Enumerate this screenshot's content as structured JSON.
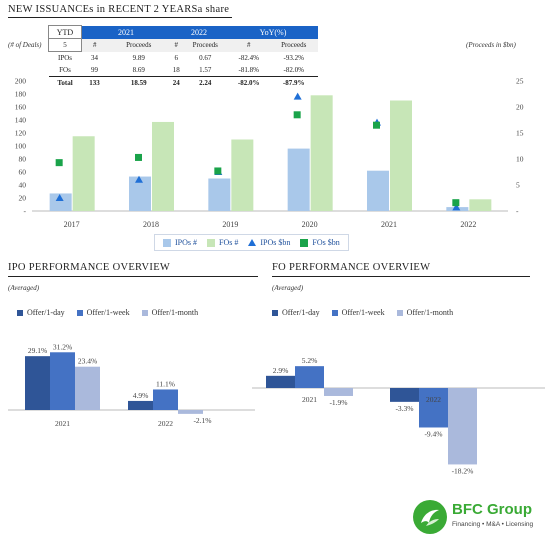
{
  "top": {
    "title": "NEW ISSUANCEs in RECENT 2 YEARSa share",
    "left_note": "(# of Deals)",
    "right_note": "(Proceeds in $bn)"
  },
  "ytd_table": {
    "header": [
      "YTD",
      "2021",
      "2022",
      "YoY(%)"
    ],
    "subheader": [
      "5",
      "#",
      "Proceeds",
      "#",
      "Proceeds",
      "#",
      "Proceeds"
    ],
    "rows": [
      [
        "IPOs",
        "34",
        "9.89",
        "6",
        "0.67",
        "-82.4%",
        "-93.2%"
      ],
      [
        "FOs",
        "99",
        "8.69",
        "18",
        "1.57",
        "-81.8%",
        "-82.0%"
      ]
    ],
    "total": [
      "Total",
      "133",
      "18.59",
      "24",
      "2.24",
      "-82.0%",
      "-87.9%"
    ]
  },
  "chart_data": [
    {
      "type": "bar",
      "categories": [
        "2017",
        "2018",
        "2019",
        "2020",
        "2021",
        "2022"
      ],
      "series": [
        {
          "name": "IPOs #",
          "kind": "bar",
          "axis": "left",
          "color": "#a9c8ea",
          "values": [
            27,
            53,
            50,
            96,
            62,
            6
          ]
        },
        {
          "name": "FOs #",
          "kind": "bar",
          "axis": "left",
          "color": "#c7e6b7",
          "values": [
            115,
            137,
            110,
            178,
            170,
            18
          ]
        },
        {
          "name": "IPOs $bn",
          "kind": "marker-triangle",
          "axis": "right",
          "color": "#1f6fd6",
          "values": [
            2.5,
            6.0,
            7.5,
            22.0,
            17.0,
            0.7
          ]
        },
        {
          "name": "FOs $bn",
          "kind": "marker-square",
          "axis": "right",
          "color": "#1aa34a",
          "values": [
            9.3,
            10.3,
            7.7,
            18.5,
            16.5,
            1.6
          ]
        }
      ],
      "ylim_left": [
        0,
        200
      ],
      "left_ticks": [
        "-",
        "20",
        "40",
        "60",
        "80",
        "100",
        "120",
        "140",
        "160",
        "180",
        "200"
      ],
      "ylim_right": [
        0,
        25
      ],
      "right_ticks": [
        "-",
        "5",
        "10",
        "15",
        "20",
        "25"
      ],
      "legend": [
        "IPOs #",
        "FOs #",
        "IPOs $bn",
        "FOs $bn"
      ]
    },
    {
      "type": "bar",
      "title": "IPO PERFORMANCE OVERVIEW",
      "subtitle": "(Averaged)",
      "categories": [
        "2021",
        "2022"
      ],
      "series": [
        {
          "name": "Offer/1-day",
          "color": "#2f5597",
          "values": [
            29.1,
            4.9
          ]
        },
        {
          "name": "Offer/1-week",
          "color": "#4472c4",
          "values": [
            31.2,
            11.1
          ]
        },
        {
          "name": "Offer/1-month",
          "color": "#aab9dc",
          "values": [
            23.4,
            -2.1
          ]
        }
      ],
      "labels": [
        [
          "29.1%",
          "31.2%",
          "23.4%"
        ],
        [
          "4.9%",
          "11.1%",
          "-2.1%"
        ]
      ]
    },
    {
      "type": "bar",
      "title": "FO PERFORMANCE OVERVIEW",
      "subtitle": "(Averaged)",
      "categories": [
        "2021",
        "2022"
      ],
      "series": [
        {
          "name": "Offer/1-day",
          "color": "#2f5597",
          "values": [
            2.9,
            -3.3
          ]
        },
        {
          "name": "Offer/1-week",
          "color": "#4472c4",
          "values": [
            5.2,
            -9.4
          ]
        },
        {
          "name": "Offer/1-month",
          "color": "#aab9dc",
          "values": [
            -1.9,
            -18.2
          ]
        }
      ],
      "labels": [
        [
          "2.9%",
          "5.2%",
          "-1.9%"
        ],
        [
          "-3.3%",
          "-9.4%",
          "-18.2%"
        ]
      ]
    }
  ],
  "logo": {
    "name": "BFC Group",
    "tagline": "Financing • M&A • Licensing",
    "color": "#3aaa35"
  }
}
